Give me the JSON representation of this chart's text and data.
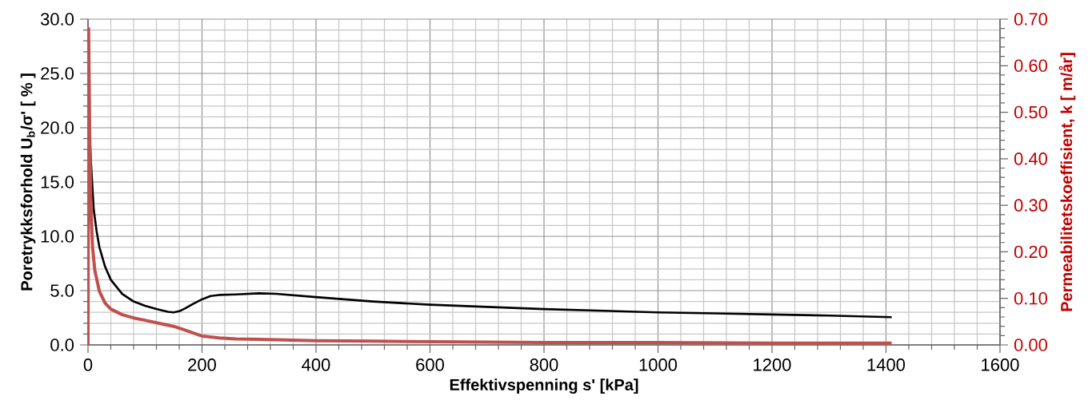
{
  "chart_data": {
    "type": "line",
    "xlabel": "Effektivspenning s' [kPa]",
    "ylabel": "Poretrykksforhold U$_{b}$/σ' [  %  ]",
    "y2label": "Permeabilitetskoeffisient,  k [ m/år]",
    "xlim": [
      0,
      1600
    ],
    "xticks": [
      0,
      200,
      400,
      600,
      800,
      1000,
      1200,
      1400,
      1600
    ],
    "ylim": [
      0,
      30
    ],
    "yticks": [
      {
        "value": 0,
        "label": "0.0"
      },
      {
        "value": 5,
        "label": "5.0"
      },
      {
        "value": 10,
        "label": "10.0"
      },
      {
        "value": 15,
        "label": "15.0"
      },
      {
        "value": 20,
        "label": "20.0"
      },
      {
        "value": 25,
        "label": "25.0"
      },
      {
        "value": 30,
        "label": "30.0"
      }
    ],
    "y2lim": [
      0,
      0.7
    ],
    "y2ticks": [
      {
        "value": 0,
        "label": "0.00"
      },
      {
        "value": 0.1,
        "label": "0.10"
      },
      {
        "value": 0.2,
        "label": "0.20"
      },
      {
        "value": 0.3,
        "label": "0.30"
      },
      {
        "value": 0.4,
        "label": "0.40"
      },
      {
        "value": 0.5,
        "label": "0.50"
      },
      {
        "value": 0.6,
        "label": "0.60"
      },
      {
        "value": 0.7,
        "label": "0.70"
      }
    ],
    "grid": true,
    "series": [
      {
        "color": "#000000",
        "x": [
          2,
          5,
          10,
          15,
          20,
          30,
          40,
          60,
          80,
          100,
          120,
          140,
          150,
          160,
          170,
          185,
          200,
          215,
          230,
          260,
          300,
          330,
          400,
          500,
          600,
          700,
          800,
          900,
          1000,
          1100,
          1200,
          1300,
          1410
        ],
        "values": [
          20.5,
          17,
          12.5,
          10.5,
          9,
          7.2,
          6,
          4.7,
          4,
          3.6,
          3.3,
          3.05,
          3.0,
          3.1,
          3.35,
          3.8,
          4.2,
          4.5,
          4.6,
          4.65,
          4.75,
          4.7,
          4.4,
          4.0,
          3.7,
          3.5,
          3.3,
          3.15,
          3.0,
          2.9,
          2.8,
          2.7,
          2.55
        ]
      },
      {
        "color": "#c0504d",
        "axis": "y2",
        "x": [
          0,
          1,
          3,
          5,
          8,
          12,
          20,
          30,
          40,
          60,
          80,
          100,
          130,
          150,
          170,
          200,
          230,
          260,
          300,
          400,
          500,
          600,
          800,
          1000,
          1200,
          1410
        ],
        "values": [
          0,
          0.68,
          0.45,
          0.3,
          0.21,
          0.16,
          0.115,
          0.09,
          0.077,
          0.065,
          0.058,
          0.053,
          0.045,
          0.04,
          0.032,
          0.019,
          0.015,
          0.013,
          0.012,
          0.009,
          0.008,
          0.007,
          0.005,
          0.005,
          0.004,
          0.004
        ]
      }
    ]
  }
}
